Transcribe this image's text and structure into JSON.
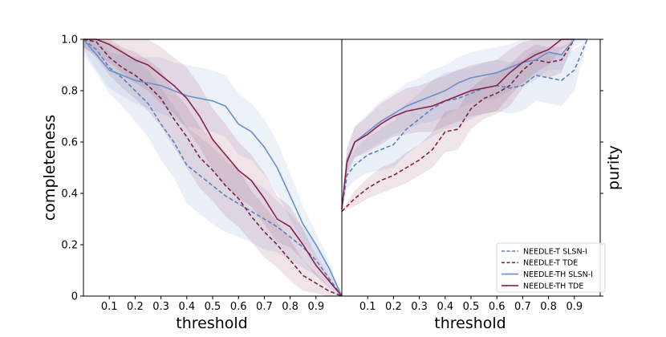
{
  "chart_data": [
    {
      "type": "line",
      "panel": "left",
      "xlabel": "threshold",
      "ylabel": "completeness",
      "xlim": [
        0,
        1
      ],
      "ylim": [
        0,
        1
      ],
      "xticks": [
        0.1,
        0.2,
        0.3,
        0.4,
        0.5,
        0.6,
        0.7,
        0.8,
        0.9
      ],
      "xtick_labels": [
        "0.1",
        "0.2",
        "0.3",
        "0.4",
        "0.5",
        "0.6",
        "0.7",
        "0.8",
        "0.9"
      ],
      "yticks": [
        0,
        0.2,
        0.4,
        0.6,
        0.8,
        1.0
      ],
      "ytick_labels": [
        "0",
        "0.2",
        "0.4",
        "0.6",
        "0.8",
        "1.0"
      ],
      "series": [
        {
          "name": "NEEDLE-T SLSN-I",
          "style": "dashed",
          "color": "#5b7fbf",
          "x": [
            0,
            0.05,
            0.1,
            0.15,
            0.2,
            0.25,
            0.3,
            0.35,
            0.4,
            0.45,
            0.5,
            0.55,
            0.6,
            0.65,
            0.7,
            0.75,
            0.8,
            0.85,
            0.9,
            0.95,
            1.0
          ],
          "y": [
            1.0,
            0.96,
            0.89,
            0.85,
            0.8,
            0.75,
            0.67,
            0.6,
            0.51,
            0.47,
            0.43,
            0.39,
            0.36,
            0.33,
            0.3,
            0.27,
            0.23,
            0.19,
            0.14,
            0.07,
            0.0
          ],
          "band": [
            0.06,
            0.09,
            0.1,
            0.11,
            0.12,
            0.13,
            0.14,
            0.14,
            0.15,
            0.15,
            0.15,
            0.14,
            0.13,
            0.12,
            0.12,
            0.1,
            0.09,
            0.08,
            0.06,
            0.04,
            0.0
          ]
        },
        {
          "name": "NEEDLE-T TDE",
          "style": "dashed",
          "color": "#7e2045",
          "x": [
            0,
            0.05,
            0.1,
            0.15,
            0.2,
            0.25,
            0.3,
            0.35,
            0.4,
            0.45,
            0.5,
            0.55,
            0.6,
            0.65,
            0.7,
            0.75,
            0.8,
            0.85,
            0.9,
            0.95,
            1.0
          ],
          "y": [
            1.0,
            0.99,
            0.93,
            0.89,
            0.86,
            0.82,
            0.77,
            0.69,
            0.62,
            0.54,
            0.49,
            0.43,
            0.38,
            0.31,
            0.25,
            0.2,
            0.14,
            0.08,
            0.05,
            0.02,
            0.0
          ],
          "band": [
            0.03,
            0.06,
            0.07,
            0.08,
            0.09,
            0.1,
            0.11,
            0.11,
            0.12,
            0.12,
            0.12,
            0.12,
            0.11,
            0.1,
            0.1,
            0.09,
            0.08,
            0.06,
            0.04,
            0.02,
            0.0
          ]
        },
        {
          "name": "NEEDLE-TH SLSN-I",
          "style": "solid",
          "color": "#6a8fc9",
          "x": [
            0,
            0.05,
            0.1,
            0.15,
            0.2,
            0.25,
            0.3,
            0.35,
            0.4,
            0.45,
            0.5,
            0.55,
            0.6,
            0.65,
            0.7,
            0.75,
            0.8,
            0.85,
            0.9,
            0.95,
            1.0
          ],
          "y": [
            1.0,
            0.94,
            0.88,
            0.86,
            0.84,
            0.83,
            0.82,
            0.8,
            0.78,
            0.77,
            0.76,
            0.74,
            0.67,
            0.64,
            0.58,
            0.5,
            0.39,
            0.28,
            0.2,
            0.11,
            0.0
          ],
          "band": [
            0.04,
            0.06,
            0.07,
            0.08,
            0.09,
            0.1,
            0.11,
            0.11,
            0.12,
            0.12,
            0.12,
            0.12,
            0.12,
            0.11,
            0.11,
            0.1,
            0.09,
            0.07,
            0.05,
            0.03,
            0.0
          ]
        },
        {
          "name": "NEEDLE-TH TDE",
          "style": "solid",
          "color": "#8a1f4e",
          "x": [
            0,
            0.05,
            0.1,
            0.15,
            0.2,
            0.25,
            0.3,
            0.35,
            0.4,
            0.45,
            0.5,
            0.55,
            0.6,
            0.65,
            0.7,
            0.75,
            0.8,
            0.85,
            0.9,
            0.95,
            1.0
          ],
          "y": [
            1.0,
            1.0,
            0.98,
            0.95,
            0.92,
            0.9,
            0.86,
            0.82,
            0.77,
            0.7,
            0.61,
            0.55,
            0.49,
            0.45,
            0.38,
            0.3,
            0.27,
            0.2,
            0.12,
            0.06,
            0.0
          ],
          "band": [
            0.03,
            0.06,
            0.07,
            0.08,
            0.09,
            0.1,
            0.11,
            0.11,
            0.12,
            0.12,
            0.12,
            0.12,
            0.11,
            0.1,
            0.1,
            0.09,
            0.08,
            0.06,
            0.04,
            0.02,
            0.0
          ]
        }
      ]
    },
    {
      "type": "line",
      "panel": "right",
      "xlabel": "threshold",
      "ylabel": "purity",
      "xlim": [
        0,
        1
      ],
      "ylim": [
        0,
        1
      ],
      "xticks": [
        0.1,
        0.2,
        0.3,
        0.4,
        0.5,
        0.6,
        0.7,
        0.8,
        0.9
      ],
      "xtick_labels": [
        "0.1",
        "0.2",
        "0.3",
        "0.4",
        "0.5",
        "0.6",
        "0.7",
        "0.8",
        "0.9"
      ],
      "yticks": [
        0,
        0.2,
        0.4,
        0.6,
        0.8,
        1.0
      ],
      "legend_position": "bottom-right",
      "series": [
        {
          "name": "NEEDLE-T SLSN-I",
          "style": "dashed",
          "color": "#5b7fbf",
          "x": [
            0,
            0.02,
            0.05,
            0.1,
            0.15,
            0.2,
            0.25,
            0.3,
            0.35,
            0.4,
            0.45,
            0.5,
            0.55,
            0.6,
            0.65,
            0.7,
            0.75,
            0.8,
            0.85,
            0.9,
            0.95
          ],
          "y": [
            0.34,
            0.47,
            0.51,
            0.55,
            0.57,
            0.59,
            0.65,
            0.69,
            0.73,
            0.76,
            0.77,
            0.79,
            0.81,
            0.82,
            0.81,
            0.82,
            0.86,
            0.85,
            0.84,
            0.88,
            1.0
          ],
          "band": [
            0.0,
            0.05,
            0.06,
            0.07,
            0.08,
            0.09,
            0.1,
            0.1,
            0.11,
            0.11,
            0.11,
            0.1,
            0.1,
            0.1,
            0.1,
            0.1,
            0.1,
            0.1,
            0.1,
            0.08,
            0.0
          ]
        },
        {
          "name": "NEEDLE-T TDE",
          "style": "dashed",
          "color": "#7e2045",
          "x": [
            0,
            0.05,
            0.1,
            0.15,
            0.2,
            0.25,
            0.3,
            0.35,
            0.4,
            0.45,
            0.5,
            0.55,
            0.6,
            0.65,
            0.7,
            0.75,
            0.8,
            0.85,
            0.9
          ],
          "y": [
            0.33,
            0.38,
            0.42,
            0.45,
            0.47,
            0.5,
            0.53,
            0.57,
            0.64,
            0.65,
            0.73,
            0.77,
            0.79,
            0.82,
            0.88,
            0.92,
            0.91,
            0.92,
            1.0
          ],
          "band": [
            0.0,
            0.03,
            0.04,
            0.05,
            0.05,
            0.06,
            0.06,
            0.07,
            0.08,
            0.08,
            0.08,
            0.08,
            0.08,
            0.08,
            0.07,
            0.06,
            0.06,
            0.05,
            0.0
          ]
        },
        {
          "name": "NEEDLE-TH SLSN-I",
          "style": "solid",
          "color": "#6a8fc9",
          "x": [
            0,
            0.02,
            0.05,
            0.1,
            0.15,
            0.2,
            0.25,
            0.3,
            0.35,
            0.4,
            0.45,
            0.5,
            0.55,
            0.6,
            0.65,
            0.7,
            0.75,
            0.8,
            0.85,
            0.9,
            0.95
          ],
          "y": [
            0.34,
            0.53,
            0.6,
            0.64,
            0.68,
            0.71,
            0.74,
            0.76,
            0.78,
            0.8,
            0.83,
            0.85,
            0.86,
            0.87,
            0.89,
            0.91,
            0.92,
            0.95,
            0.94,
            1.0,
            1.0
          ],
          "band": [
            0.0,
            0.05,
            0.06,
            0.07,
            0.08,
            0.08,
            0.09,
            0.09,
            0.1,
            0.1,
            0.1,
            0.1,
            0.1,
            0.1,
            0.09,
            0.09,
            0.08,
            0.07,
            0.06,
            0.03,
            0.0
          ]
        },
        {
          "name": "NEEDLE-TH TDE",
          "style": "solid",
          "color": "#8a1f4e",
          "x": [
            0,
            0.02,
            0.05,
            0.1,
            0.15,
            0.2,
            0.25,
            0.3,
            0.35,
            0.4,
            0.45,
            0.5,
            0.55,
            0.6,
            0.65,
            0.7,
            0.75,
            0.8,
            0.85,
            0.9
          ],
          "y": [
            0.34,
            0.52,
            0.6,
            0.63,
            0.67,
            0.7,
            0.72,
            0.73,
            0.74,
            0.76,
            0.78,
            0.8,
            0.81,
            0.82,
            0.87,
            0.91,
            0.94,
            0.96,
            1.0,
            1.0
          ],
          "band": [
            0.0,
            0.05,
            0.06,
            0.07,
            0.08,
            0.08,
            0.09,
            0.09,
            0.1,
            0.1,
            0.1,
            0.1,
            0.1,
            0.1,
            0.09,
            0.08,
            0.07,
            0.06,
            0.04,
            0.0
          ]
        }
      ]
    }
  ]
}
